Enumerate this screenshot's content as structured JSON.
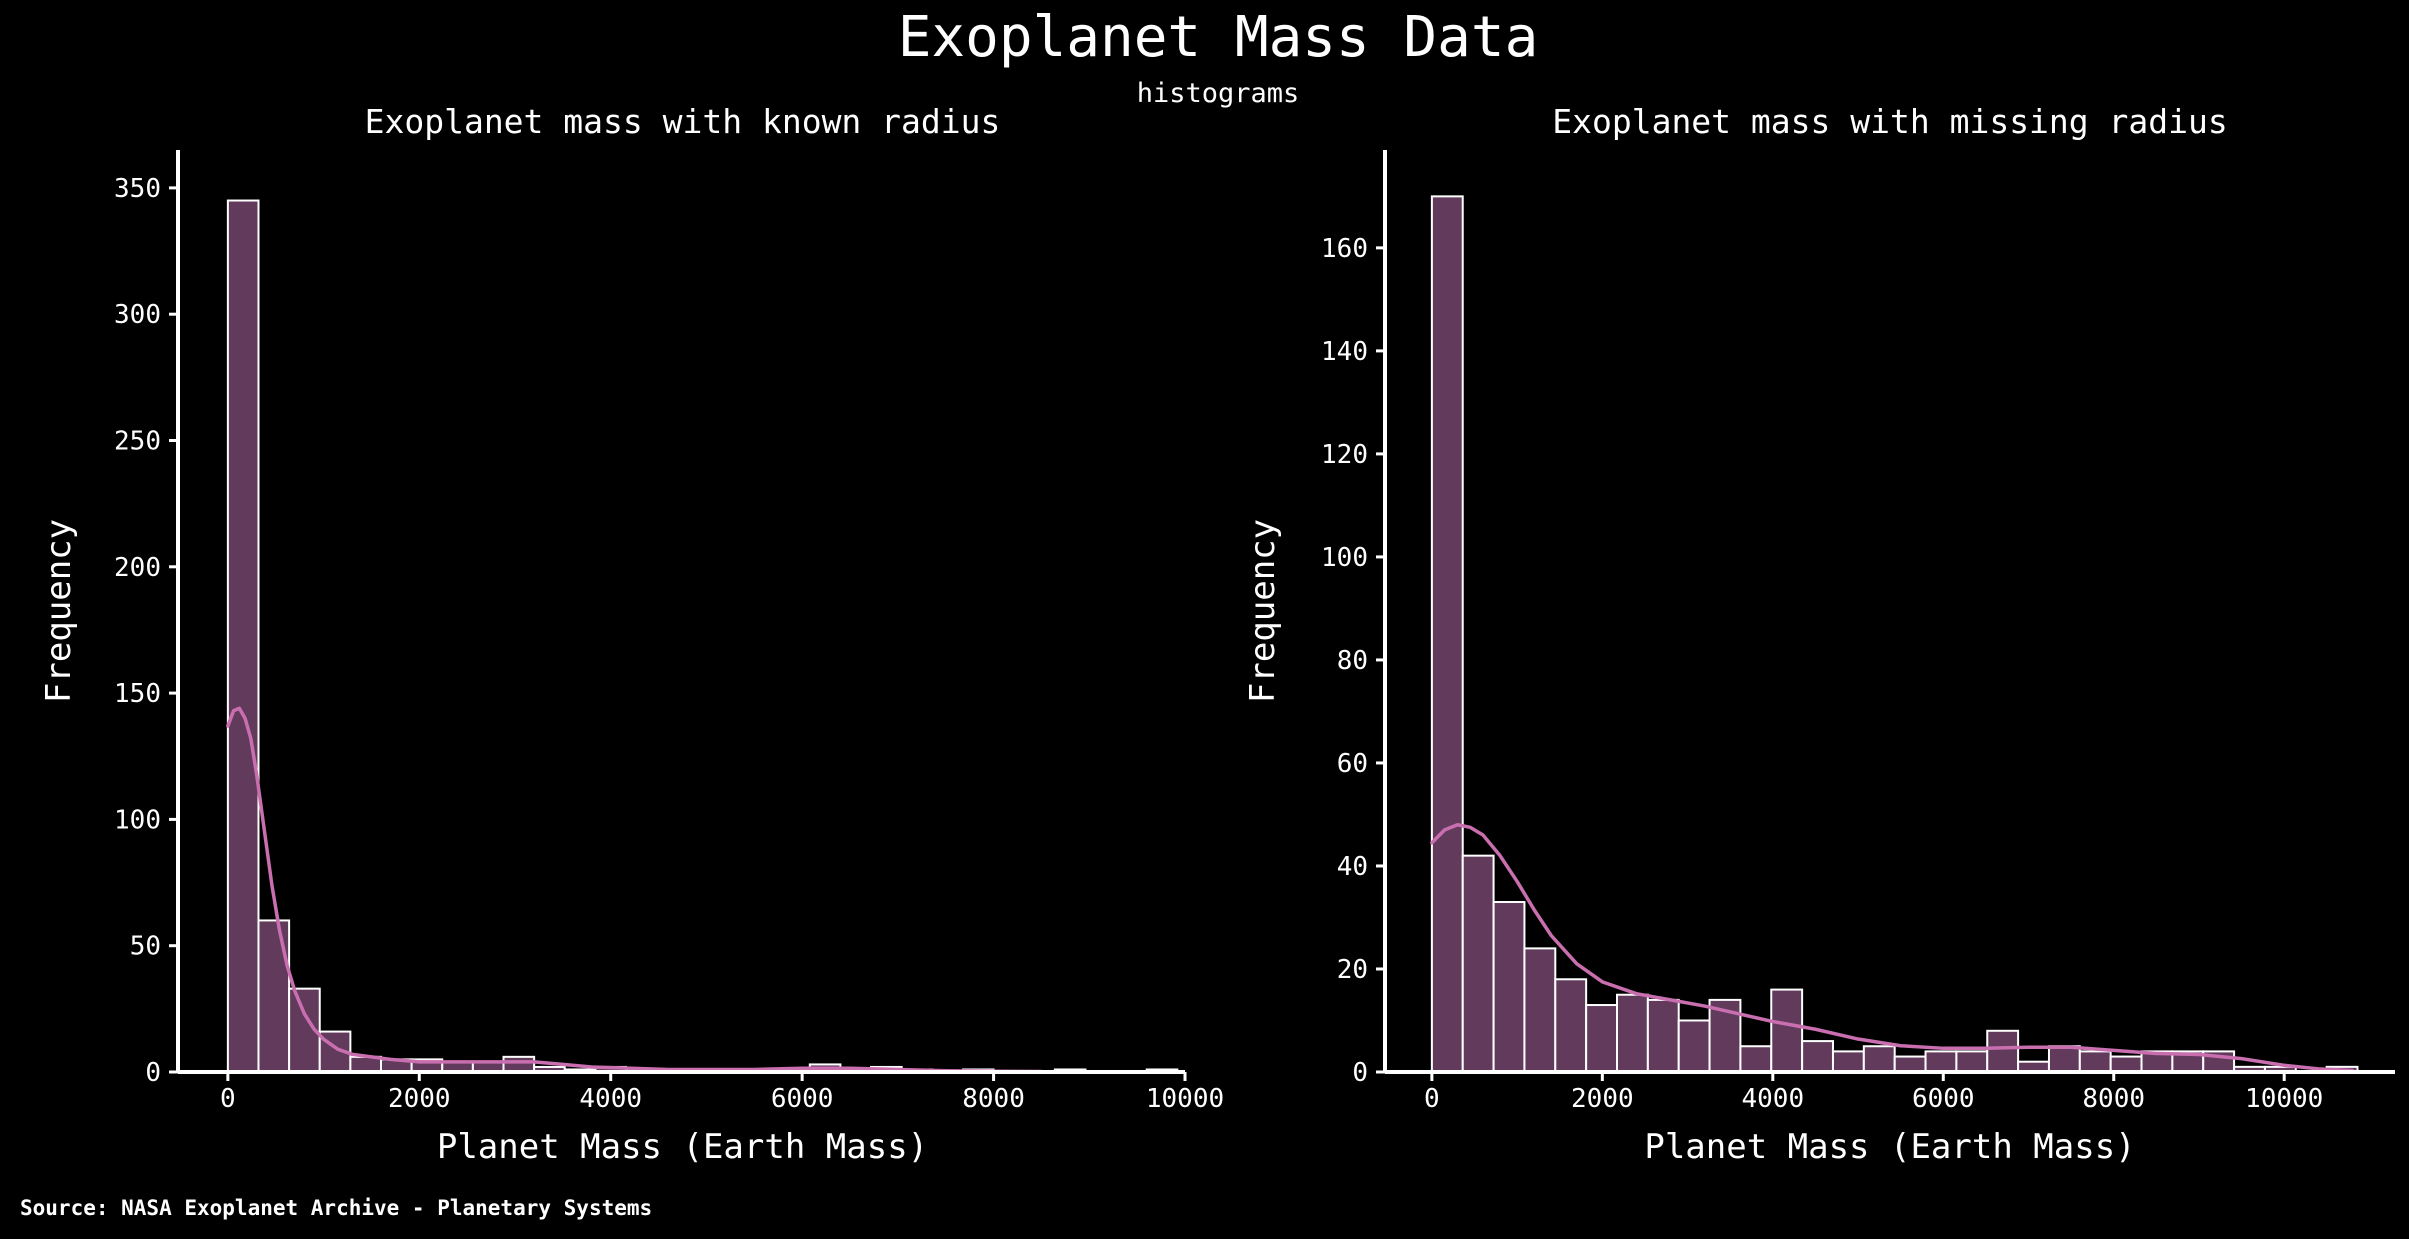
{
  "title": "Exoplanet Mass Data",
  "subtitle": "histograms",
  "source": "Source: NASA Exoplanet Archive - Planetary Systems",
  "colors": {
    "background": "#000000",
    "bar_fill": "#613a5c",
    "bar_edge": "#ffffff",
    "kde_line": "#c96fb0",
    "axis": "#ffffff"
  },
  "chart_data": [
    {
      "type": "bar",
      "title": "Exoplanet mass with known radius",
      "xlabel": "Planet Mass (Earth Mass)",
      "ylabel": "Frequency",
      "xlim": [
        -500,
        10000
      ],
      "ylim": [
        0,
        365
      ],
      "xticks": [
        0,
        2000,
        4000,
        6000,
        8000,
        10000
      ],
      "yticks": [
        0,
        50,
        100,
        150,
        200,
        250,
        300,
        350
      ],
      "bin_width": 320,
      "bin_starts": [
        0,
        320,
        640,
        960,
        1280,
        1600,
        1920,
        2240,
        2560,
        2880,
        3200,
        3520,
        3840,
        4160,
        4480,
        4800,
        5120,
        5440,
        5760,
        6080,
        6400,
        6720,
        7040,
        7360,
        7680,
        8000,
        8320,
        8640,
        8960,
        9280,
        9600
      ],
      "values": [
        345,
        60,
        33,
        16,
        6,
        5,
        5,
        4,
        4,
        6,
        2,
        1,
        2,
        1,
        1,
        1,
        0,
        1,
        1,
        3,
        1,
        2,
        1,
        0,
        1,
        0,
        0,
        1,
        0,
        0,
        1
      ],
      "kde": {
        "x": [
          0,
          60,
          120,
          180,
          240,
          300,
          380,
          460,
          540,
          620,
          700,
          800,
          900,
          1000,
          1150,
          1300,
          1500,
          1700,
          2000,
          2300,
          2600,
          2900,
          3200,
          3500,
          3800,
          4200,
          4600,
          5000,
          5500,
          6000,
          6500,
          7000,
          7500,
          8000,
          8500
        ],
        "y": [
          137,
          143,
          144,
          140,
          132,
          118,
          96,
          74,
          56,
          42,
          32,
          23,
          17,
          13,
          9,
          7,
          6,
          5,
          4,
          4,
          4,
          4,
          4,
          3,
          2,
          1.5,
          1,
          1,
          1,
          1.5,
          1.5,
          1,
          0.5,
          0.3,
          0.2
        ]
      }
    },
    {
      "type": "bar",
      "title": "Exoplanet mass with missing radius",
      "xlabel": "Planet Mass (Earth Mass)",
      "ylabel": "Frequency",
      "xlim": [
        -550,
        11300
      ],
      "ylim": [
        0,
        179
      ],
      "xticks": [
        0,
        2000,
        4000,
        6000,
        8000,
        10000
      ],
      "yticks": [
        0,
        20,
        40,
        60,
        80,
        100,
        120,
        140,
        160
      ],
      "bin_width": 362,
      "bin_starts": [
        0,
        362,
        724,
        1086,
        1448,
        1810,
        2172,
        2534,
        2896,
        3258,
        3620,
        3982,
        4344,
        4706,
        5068,
        5430,
        5792,
        6154,
        6516,
        6878,
        7240,
        7602,
        7964,
        8326,
        8688,
        9050,
        9412,
        9774,
        10136,
        10498
      ],
      "values": [
        170,
        42,
        33,
        24,
        18,
        13,
        15,
        14,
        10,
        14,
        5,
        16,
        6,
        4,
        5,
        3,
        4,
        4,
        8,
        2,
        5,
        4,
        3,
        4,
        4,
        4,
        1,
        1,
        0,
        1
      ],
      "kde": {
        "x": [
          0,
          150,
          300,
          450,
          600,
          800,
          1000,
          1200,
          1400,
          1700,
          2000,
          2400,
          2800,
          3200,
          3600,
          4000,
          4500,
          5000,
          5500,
          6000,
          6500,
          7000,
          7500,
          8000,
          8500,
          9000,
          9500,
          10000,
          10400,
          10800
        ],
        "y": [
          44.5,
          47,
          48,
          47.5,
          46,
          42,
          37,
          31.5,
          26.5,
          21,
          17.5,
          15.2,
          14,
          12.8,
          11.3,
          9.8,
          8.3,
          6.4,
          5.1,
          4.6,
          4.6,
          4.8,
          4.8,
          4.2,
          3.6,
          3.4,
          2.6,
          1.3,
          0.6,
          0.3
        ]
      }
    }
  ]
}
